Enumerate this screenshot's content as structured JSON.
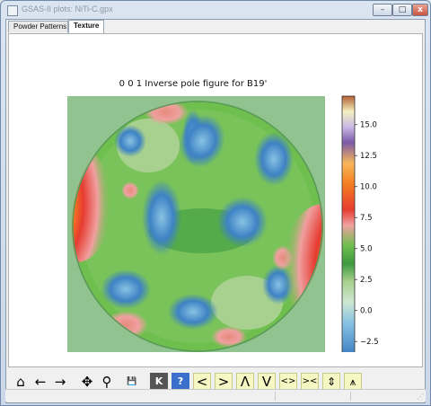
{
  "window": {
    "title": "GSAS-II plots: NiTi-C.gpx",
    "minimize_label": "–",
    "maximize_label": "□",
    "close_label": "x"
  },
  "tabs": [
    {
      "label": "Powder Patterns",
      "active": false
    },
    {
      "label": "Texture",
      "active": true
    }
  ],
  "plot": {
    "title": "0 0 1 Inverse pole figure for B19'"
  },
  "chart_data": {
    "type": "heatmap",
    "title": "0 0 1 Inverse pole figure for B19'",
    "colorbar": {
      "ticks": [
        -2.5,
        0.0,
        2.5,
        5.0,
        7.5,
        10.0,
        12.5,
        15.0
      ],
      "tick_labels": [
        "−2.5",
        "0.0",
        "2.5",
        "5.0",
        "7.5",
        "10.0",
        "12.5",
        "15.0"
      ],
      "range": [
        -3.5,
        17.3
      ]
    },
    "colormap": [
      "#3e82c4",
      "#88c2e3",
      "#cde7d1",
      "#a8d18f",
      "#3e9a3f",
      "#6fbf4e",
      "#f0a0a0",
      "#e63b30",
      "#f57f20",
      "#f8b65c",
      "#7b5aa6",
      "#c9b8e6",
      "#f4f0c0",
      "#b35f32"
    ]
  },
  "toolbar": {
    "home_icon": "⌂",
    "back_icon": "←",
    "forward_icon": "→",
    "pan_icon": "✥",
    "zoom_icon": "⚲",
    "save_icon": "💾",
    "k_icon": "K",
    "help_icon": "?",
    "left_label": "<",
    "right_label": ">",
    "up_label": "Λ",
    "down_label": "V",
    "expand_h_label": "<>",
    "shrink_h_label": "><",
    "expand_v_label": "⇕",
    "shrink_v_label": "⩚"
  }
}
